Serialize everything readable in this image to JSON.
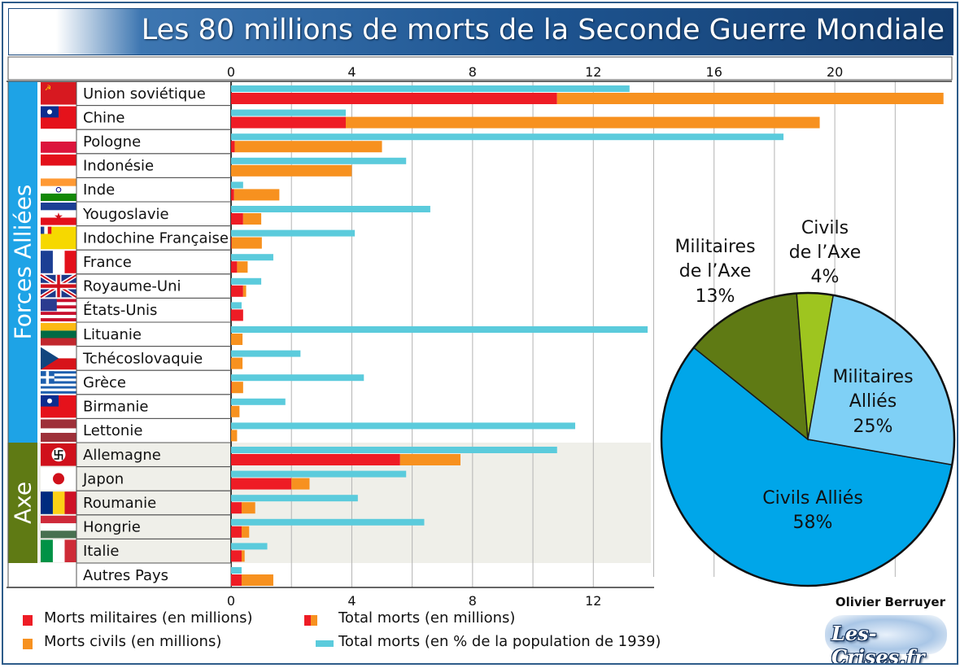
{
  "page": {
    "title": "Les 80 millions de morts de la Seconde Guerre Mondiale",
    "author": "Olivier Berruyer",
    "logo_text": "Les-Crises.fr",
    "group_allies": "Forces Alliées",
    "group_axis": "Axe"
  },
  "legend": {
    "military": "Morts militaires (en millions)",
    "civil": "Morts civils (en millions)",
    "total": "Total morts (en millions)",
    "percent": "Total morts (en % de la population de 1939)"
  },
  "colors": {
    "military": "#ee1c25",
    "civil": "#f7911f",
    "percent": "#5bcbdc",
    "allies_band": "#1ea3e6",
    "axis_band": "#5f7a14",
    "axis_rows_bg": "#efefe9",
    "title_bar": "#1e5591"
  },
  "chart_data": [
    {
      "type": "bar",
      "orientation": "horizontal",
      "stacked": true,
      "xlim": [
        0,
        23.5
      ],
      "x_ticks_top": [
        0,
        4,
        8,
        12,
        16,
        20
      ],
      "x_ticks_bottom": [
        0,
        4,
        8,
        12
      ],
      "grid": true,
      "categories": [
        "Union soviétique",
        "Chine",
        "Pologne",
        "Indonésie",
        "Inde",
        "Yougoslavie",
        "Indochine Française",
        "France",
        "Royaume-Uni",
        "États-Unis",
        "Lituanie",
        "Tchécoslovaquie",
        "Grèce",
        "Birmanie",
        "Lettonie",
        "Allemagne",
        "Japon",
        "Roumanie",
        "Hongrie",
        "Italie",
        "Autres Pays"
      ],
      "groups": [
        {
          "name": "Forces Alliées",
          "from": 0,
          "to": 14
        },
        {
          "name": "Axe",
          "from": 15,
          "to": 19
        }
      ],
      "flags": [
        "soviet",
        "taiwan",
        "poland",
        "indonesia",
        "india",
        "yugoslavia",
        "indochina",
        "france",
        "uk",
        "usa",
        "lithuania",
        "czech",
        "greece",
        "burma",
        "latvia",
        "germany",
        "japan",
        "romania",
        "hungary",
        "italy",
        "none"
      ],
      "series": [
        {
          "name": "Morts militaires (en millions)",
          "key": "military",
          "values": [
            10.8,
            3.8,
            0.12,
            0.0,
            0.1,
            0.4,
            0.02,
            0.2,
            0.4,
            0.4,
            0.0,
            0.0,
            0.02,
            0.0,
            0.0,
            5.6,
            2.0,
            0.35,
            0.35,
            0.35,
            0.35
          ]
        },
        {
          "name": "Morts civils (en millions)",
          "key": "civil",
          "values": [
            12.8,
            15.7,
            4.88,
            4.0,
            1.5,
            0.6,
            1.0,
            0.35,
            0.1,
            0.0,
            0.38,
            0.38,
            0.38,
            0.28,
            0.2,
            2.0,
            0.6,
            0.45,
            0.25,
            0.1,
            1.05
          ]
        },
        {
          "name": "Total morts (en % de la population de 1939)",
          "key": "percent",
          "values": [
            13.2,
            3.8,
            18.3,
            5.8,
            0.4,
            6.6,
            4.1,
            1.4,
            1.0,
            0.35,
            13.8,
            2.3,
            4.4,
            1.8,
            11.4,
            10.8,
            5.8,
            4.2,
            6.4,
            1.2,
            0.35
          ]
        }
      ]
    },
    {
      "type": "pie",
      "slices": [
        {
          "label": "Civils Alliés",
          "pct_label": "58%",
          "value": 58,
          "color": "#00a6e9"
        },
        {
          "label": "Militaires de l’Axe",
          "pct_label": "13%",
          "value": 13,
          "color": "#5f7a14"
        },
        {
          "label": "Civils de l’Axe",
          "pct_label": "4%",
          "value": 4,
          "color": "#9ec51f"
        },
        {
          "label": "Militaires Alliés",
          "pct_label": "25%",
          "value": 25,
          "color": "#7fd0f6"
        }
      ]
    }
  ]
}
